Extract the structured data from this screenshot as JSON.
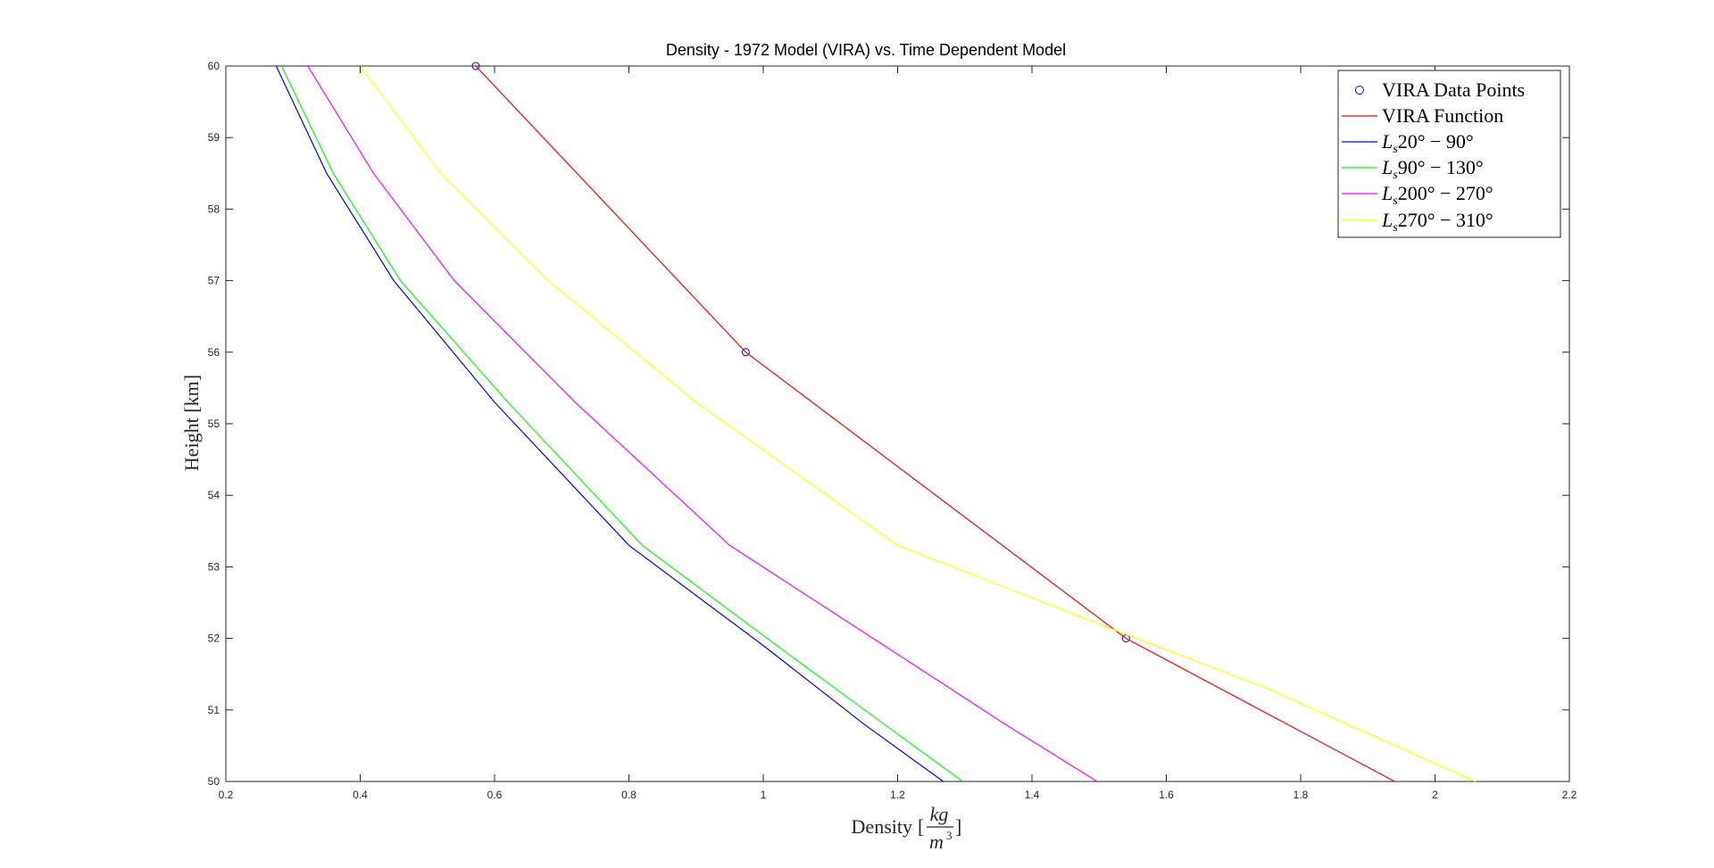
{
  "chart_data": {
    "type": "line",
    "title": "Density - 1972 Model (VIRA) vs. Time Dependent Model",
    "xlabel": "Density",
    "xlabel_unit_numerator": "kg",
    "xlabel_unit_denominator": "m",
    "xlabel_unit_denominator_exponent": "3",
    "ylabel": "Height [km]",
    "xlim": [
      0.2,
      2.2
    ],
    "ylim": [
      50,
      60
    ],
    "xticks": [
      0.2,
      0.4,
      0.6,
      0.8,
      1,
      1.2,
      1.4,
      1.6,
      1.8,
      2,
      2.2
    ],
    "yticks": [
      50,
      51,
      52,
      53,
      54,
      55,
      56,
      57,
      58,
      59,
      60
    ],
    "grid": false,
    "legend_position": "top-right",
    "legend": [
      {
        "label": "VIRA Data Points"
      },
      {
        "label": "VIRA Function"
      },
      {
        "prefix": "L",
        "subscript": "s",
        "range": "20° − 90°"
      },
      {
        "prefix": "L",
        "subscript": "s",
        "range": "90° − 130°"
      },
      {
        "prefix": "L",
        "subscript": "s",
        "range": "200° − 270°"
      },
      {
        "prefix": "L",
        "subscript": "s",
        "range": "270° − 310°"
      }
    ],
    "series": [
      {
        "name": "VIRA Data Points",
        "kind": "markers",
        "color": "#0000ff",
        "marker": "circle",
        "points": [
          [
            0.572,
            60
          ],
          [
            0.974,
            56
          ],
          [
            1.54,
            52
          ]
        ]
      },
      {
        "name": "VIRA Function",
        "kind": "line",
        "color": "#ff0000",
        "points": [
          [
            0.572,
            60
          ],
          [
            0.974,
            56
          ],
          [
            1.54,
            52
          ],
          [
            1.94,
            50
          ]
        ]
      },
      {
        "kind": "line",
        "color": "#0000ff",
        "points": [
          [
            0.275,
            60
          ],
          [
            0.35,
            58.5
          ],
          [
            0.45,
            57
          ],
          [
            0.6,
            55.3
          ],
          [
            0.8,
            53.3
          ],
          [
            1.0,
            51.9
          ],
          [
            1.15,
            50.8
          ],
          [
            1.268,
            50
          ]
        ]
      },
      {
        "kind": "line",
        "color": "#00ff00",
        "points": [
          [
            0.283,
            60
          ],
          [
            0.36,
            58.5
          ],
          [
            0.46,
            57
          ],
          [
            0.62,
            55.3
          ],
          [
            0.82,
            53.3
          ],
          [
            1.02,
            51.9
          ],
          [
            1.18,
            50.8
          ],
          [
            1.297,
            50
          ]
        ]
      },
      {
        "kind": "line",
        "color": "#ff00ff",
        "points": [
          [
            0.322,
            60
          ],
          [
            0.42,
            58.5
          ],
          [
            0.54,
            57
          ],
          [
            0.72,
            55.3
          ],
          [
            0.95,
            53.3
          ],
          [
            1.18,
            51.9
          ],
          [
            1.36,
            50.8
          ],
          [
            1.497,
            50
          ]
        ]
      },
      {
        "kind": "line",
        "color": "#ffff00",
        "points": [
          [
            0.4,
            60
          ],
          [
            0.52,
            58.5
          ],
          [
            0.68,
            57
          ],
          [
            0.9,
            55.3
          ],
          [
            1.2,
            53.3
          ],
          [
            1.5,
            52.2
          ],
          [
            1.75,
            51.3
          ],
          [
            2.06,
            50
          ]
        ]
      }
    ]
  }
}
